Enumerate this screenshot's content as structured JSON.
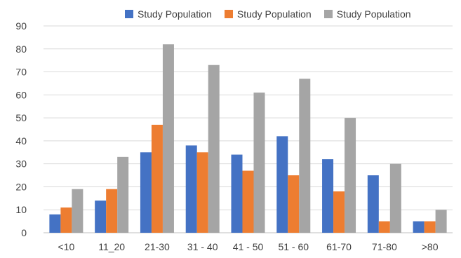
{
  "chart_data": {
    "type": "bar",
    "title": "",
    "xlabel": "",
    "ylabel": "",
    "categories": [
      "<10",
      "11_20",
      "21-30",
      "31 - 40",
      "41 - 50",
      "51 - 60",
      "61-70",
      "71-80",
      ">80"
    ],
    "ylim": [
      0,
      90
    ],
    "yticks": [
      0,
      10,
      20,
      30,
      40,
      50,
      60,
      70,
      80,
      90
    ],
    "grid": "horizontal",
    "legend_position": "top",
    "series": [
      {
        "name": "Study Population",
        "color": "#4472C4",
        "values": [
          8,
          14,
          35,
          38,
          34,
          42,
          32,
          25,
          5
        ]
      },
      {
        "name": "Study Population",
        "color": "#ED7D31",
        "values": [
          11,
          19,
          47,
          35,
          27,
          25,
          18,
          5,
          5
        ]
      },
      {
        "name": "Study Population",
        "color": "#A5A5A5",
        "values": [
          19,
          33,
          82,
          73,
          61,
          67,
          50,
          30,
          10
        ]
      }
    ]
  }
}
